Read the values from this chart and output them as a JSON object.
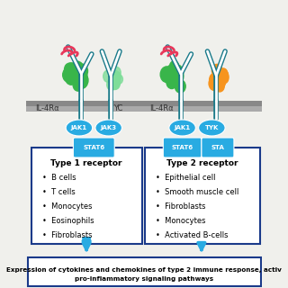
{
  "bg_color": "#f0f0ec",
  "membrane_color_top": "#888888",
  "membrane_color_bot": "#aaaaaa",
  "jak_color": "#29abe2",
  "box_border_color": "#1a3a8a",
  "box_bg_color": "#ffffff",
  "arrow_color": "#29abe2",
  "type1_title": "Type 1 receptor",
  "type1_items": [
    "B cells",
    "T cells",
    "Monocytes",
    "Eosinophils",
    "Fibroblasts"
  ],
  "type2_title": "Type 2 receptor",
  "type2_items": [
    "Epithelial cell",
    "Smooth muscle cell",
    "Fibroblasts",
    "Monocytes",
    "Activated B-cells"
  ],
  "bottom_text_line1": "Expression of cytokines and chemokines of type 2 immune response, activ",
  "bottom_text_line2": "pro-inflammatory signaling pathways",
  "green_color": "#39b54a",
  "green_light": "#7fdd99",
  "orange_color": "#f7941d",
  "red_color": "#e8375a",
  "teal_color": "#1a7a8a",
  "teal_light": "#4db3c8",
  "label_color": "#333333"
}
